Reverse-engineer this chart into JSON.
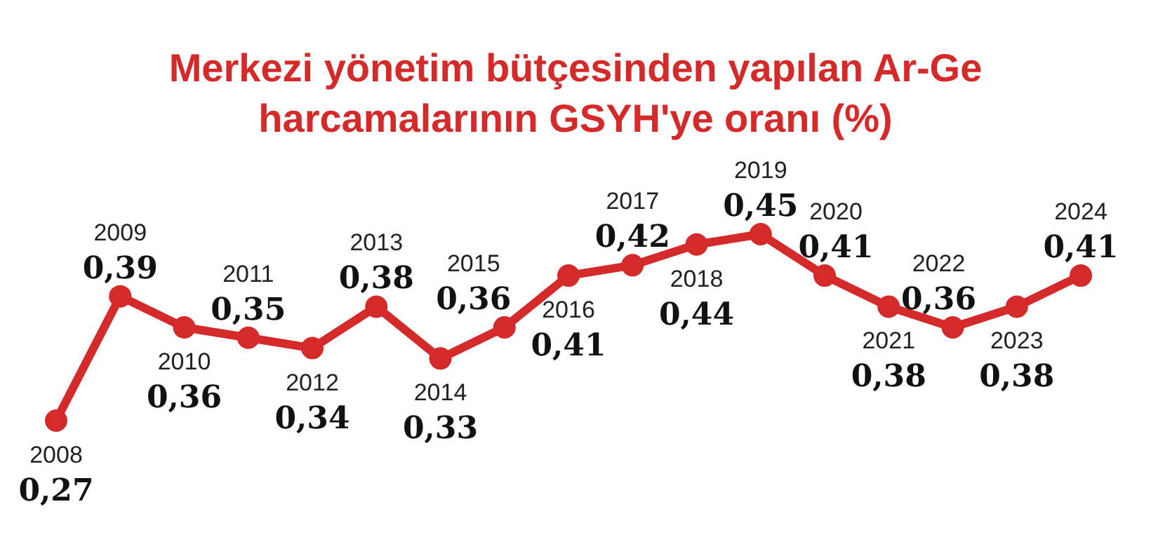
{
  "chart_data": {
    "type": "line",
    "title": "Merkezi yönetim bütçesinden yapılan Ar-Ge harcamalarının GSYH'ye oranı (%)",
    "categories": [
      "2008",
      "2009",
      "2010",
      "2011",
      "2012",
      "2013",
      "2014",
      "2015",
      "2016",
      "2017",
      "2018",
      "2019",
      "2020",
      "2021",
      "2022",
      "2023",
      "2024"
    ],
    "series": [
      {
        "color": "#d42a2a",
        "values": [
          0.27,
          0.39,
          0.36,
          0.35,
          0.34,
          0.38,
          0.33,
          0.36,
          0.41,
          0.42,
          0.44,
          0.45,
          0.41,
          0.38,
          0.36,
          0.38,
          0.41
        ],
        "value_labels": [
          "0,27",
          "0,39",
          "0,36",
          "0,35",
          "0,34",
          "0,38",
          "0,33",
          "0,36",
          "0,41",
          "0,42",
          "0,44",
          "0,45",
          "0,41",
          "0,38",
          "0,36",
          "0,38",
          "0,41"
        ]
      }
    ],
    "marker": "circle"
  }
}
